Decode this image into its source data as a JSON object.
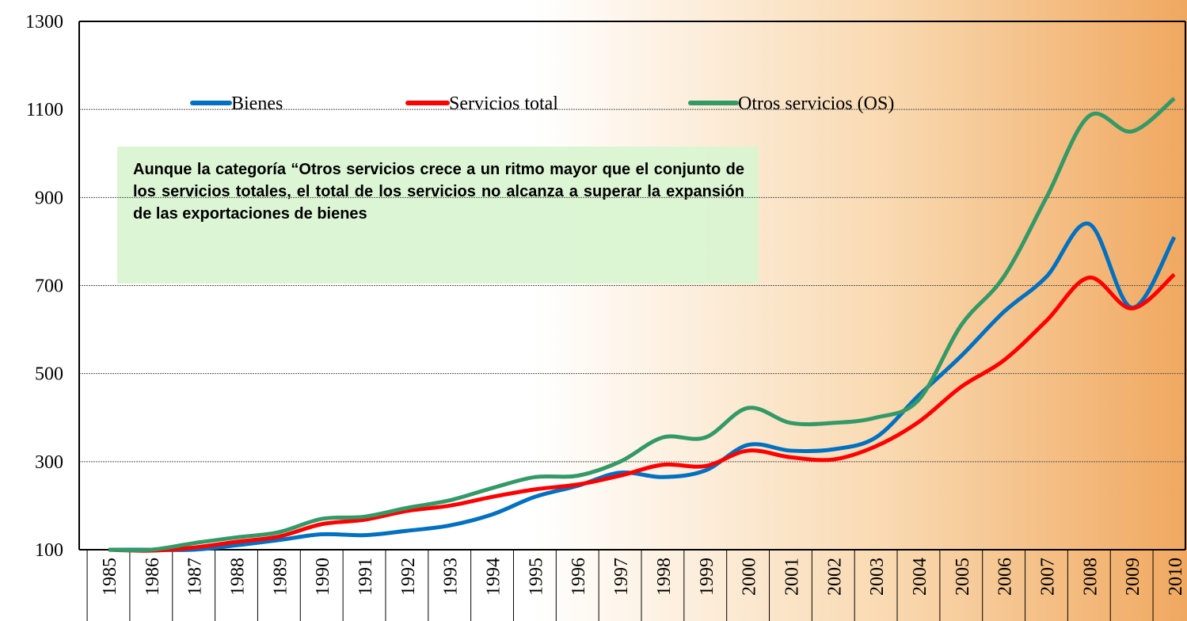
{
  "chart_data": {
    "type": "line",
    "categories": [
      "1985",
      "1986",
      "1987",
      "1988",
      "1989",
      "1990",
      "1991",
      "1992",
      "1993",
      "1994",
      "1995",
      "1996",
      "1997",
      "1998",
      "1999",
      "2000",
      "2001",
      "2002",
      "2003",
      "2004",
      "2005",
      "2006",
      "2007",
      "2008",
      "2009",
      "2010"
    ],
    "series": [
      {
        "name": "Bienes",
        "color": "#0070c0",
        "values": [
          100,
          100,
          100,
          110,
          122,
          135,
          133,
          143,
          155,
          180,
          220,
          245,
          275,
          265,
          280,
          338,
          325,
          328,
          355,
          450,
          540,
          640,
          720,
          840,
          650,
          810
        ]
      },
      {
        "name": "Servicios total",
        "color": "#ff0000",
        "values": [
          100,
          98,
          105,
          118,
          130,
          158,
          168,
          188,
          200,
          220,
          237,
          248,
          268,
          293,
          290,
          325,
          310,
          305,
          335,
          390,
          470,
          530,
          620,
          718,
          648,
          725
        ]
      },
      {
        "name": "Otros servicios (OS)",
        "color": "#339966",
        "values": [
          100,
          100,
          115,
          128,
          140,
          170,
          175,
          195,
          212,
          240,
          265,
          268,
          300,
          355,
          355,
          422,
          388,
          388,
          400,
          440,
          610,
          720,
          900,
          1085,
          1050,
          1125
        ]
      }
    ],
    "ylim": [
      100,
      1300
    ],
    "yticks": [
      100,
      300,
      500,
      700,
      900,
      1100,
      1300
    ],
    "grid": true,
    "annotation": "Aunque la categoría “Otros servicios crece a un ritmo mayor que el conjunto de los servicios totales, el total de los servicios no alcanza a superar la expansión de las exportaciones de bienes"
  }
}
